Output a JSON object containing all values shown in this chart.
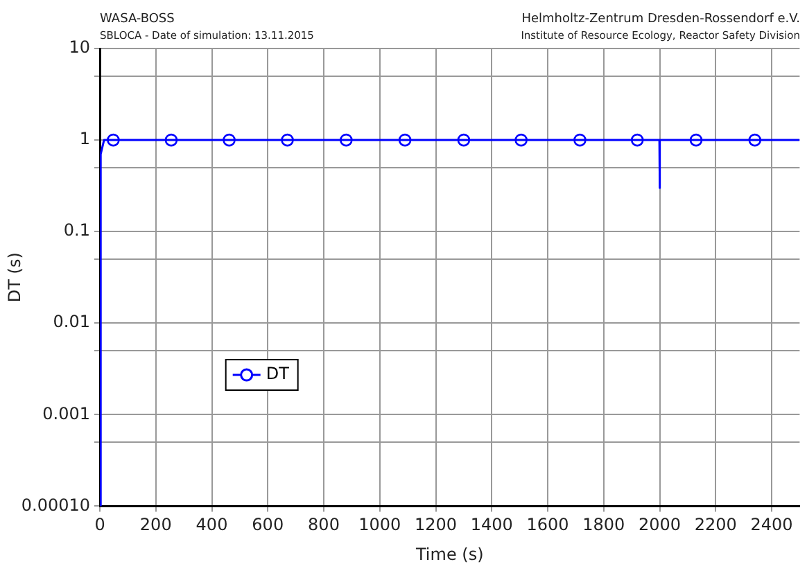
{
  "chart_data": {
    "type": "line",
    "title": "WASA-BOSS",
    "subtitle": "SBLOCA - Date of simulation: 13.11.2015",
    "annotations": [
      "Helmholtz-Zentrum Dresden-Rossendorf e.V.",
      "Institute of Resource Ecology, Reactor Safety Division"
    ],
    "xlabel": "Time (s)",
    "ylabel": "DT (s)",
    "series": [
      {
        "name": "DT",
        "type": "line",
        "color": "#0000ff",
        "marker": "none",
        "x": [
          0,
          3,
          15,
          48,
          1999,
          2000,
          2000,
          2001,
          2500
        ],
        "values": [
          0.0001,
          0.7,
          1,
          1,
          1,
          1,
          0.3,
          1,
          1
        ]
      },
      {
        "type": "scatter",
        "color": "#0000ff",
        "marker": "circle",
        "x": [
          48,
          255,
          462,
          670,
          880,
          1090,
          1300,
          1505,
          1715,
          1920,
          2130,
          2340
        ],
        "values": [
          1,
          1,
          1,
          1,
          1,
          1,
          1,
          1,
          1,
          1,
          1,
          1
        ]
      }
    ],
    "log": "y",
    "xlim": [
      0,
      2500
    ],
    "xticks": [
      0,
      200,
      400,
      600,
      800,
      1000,
      1200,
      1400,
      1600,
      1800,
      2000,
      2200,
      2400
    ],
    "ylim": [
      0.0001,
      10
    ],
    "yticks": [
      {
        "value": 0.0001,
        "label": "0.00010"
      },
      {
        "value": 0.0005,
        "label": null
      },
      0.001,
      {
        "value": 0.005,
        "label": null
      },
      0.01,
      {
        "value": 0.05,
        "label": null
      },
      0.1,
      {
        "value": 0.5,
        "label": null
      },
      1,
      {
        "value": 5,
        "label": null
      },
      10
    ],
    "grid": true,
    "legend": "left"
  }
}
